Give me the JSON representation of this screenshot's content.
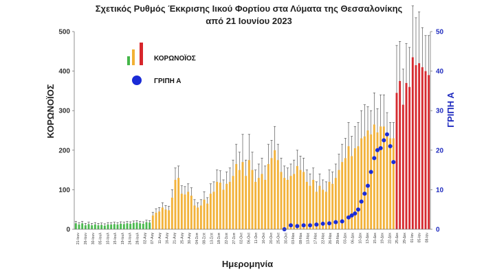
{
  "chart_data": {
    "type": "bar",
    "title_line1": "Σχετικός Ρυθμός Έκκρισης Ιικού Φορτίου στα Λύματα της Θεσσαλονίκης",
    "title_line2": "από 21 Ιουνίου 2023",
    "xlabel": "Ημερομηνία",
    "ylabel": "ΚΟΡΩΝΟΪΟΣ",
    "y2label": "ΓΡΙΠΗ Α",
    "ylim": [
      0,
      500
    ],
    "y2lim": [
      0,
      50
    ],
    "yticks": [
      "0",
      "100",
      "200",
      "300",
      "400",
      "500"
    ],
    "y2ticks": [
      "0",
      "10",
      "20",
      "30",
      "40",
      "50"
    ],
    "legend": {
      "position": "top-left",
      "covid_label": "ΚΟΡΩΝΟΪΟΣ",
      "flu_label": "ΓΡΙΠΗ Α",
      "covid_colors": [
        "#44b649",
        "#f2b134",
        "#d7262c"
      ],
      "flu_color": "#1a2bd6"
    },
    "colors": {
      "green": "#4cba4f",
      "orange": "#f2b23a",
      "red": "#d62a2f",
      "flu": "#1a2bd6",
      "errorbar": "#555555"
    },
    "date_labels": [
      "21-Ιουν",
      "26-Ιουν",
      "30-Ιουν",
      "05-Ιουλ",
      "10-Ιουλ",
      "15-Ιουλ",
      "19-Ιουλ",
      "24-Ιουλ",
      "28-Ιουλ",
      "02-Αυγ",
      "07-Αυγ",
      "11-Αυγ",
      "16-Αυγ",
      "21-Αυγ",
      "25-Αυγ",
      "30-Αυγ",
      "04-Σεπ",
      "08-Σεπ",
      "13-Σεπ",
      "18-Σεπ",
      "22-Σεπ",
      "27-Σεπ",
      "02-Οκτ",
      "06-Οκτ",
      "11-Οκτ",
      "16-Οκτ",
      "20-Οκτ",
      "25-Οκτ",
      "30-Οκτ",
      "03-Νοε",
      "08-Νοε",
      "13-Νοε",
      "17-Νοε",
      "22-Νοε",
      "26-Νοε",
      "29-Νοε",
      "03-Δεκ",
      "06-Δεκ",
      "10-Δεκ",
      "13-Δεκ",
      "15-Δεκ",
      "19-Δεκ",
      "22-Δεκ",
      "25-Δεκ",
      "29-Δεκ",
      "01-Ιαν",
      "05-Ιαν",
      "08-Ιαν"
    ],
    "covid": {
      "values": [
        15,
        12,
        15,
        10,
        13,
        10,
        12,
        10,
        11,
        9,
        12,
        12,
        13,
        12,
        14,
        13,
        15,
        14,
        16,
        17,
        15,
        14,
        18,
        17,
        35,
        42,
        45,
        55,
        50,
        48,
        80,
        125,
        130,
        90,
        88,
        95,
        85,
        60,
        55,
        60,
        75,
        65,
        90,
        95,
        120,
        118,
        100,
        115,
        120,
        135,
        165,
        150,
        170,
        135,
        175,
        150,
        120,
        130,
        140,
        125,
        165,
        180,
        200,
        175,
        145,
        130,
        125,
        135,
        140,
        160,
        150,
        145,
        120,
        110,
        125,
        95,
        110,
        100,
        95,
        120,
        115,
        130,
        150,
        170,
        180,
        210,
        185,
        205,
        210,
        230,
        235,
        250,
        240,
        265,
        245,
        260,
        260,
        235,
        230,
        230,
        345,
        375,
        315,
        370,
        360,
        435,
        415,
        420,
        410,
        400,
        390
      ],
      "errors": [
        5,
        5,
        5,
        5,
        5,
        5,
        5,
        5,
        5,
        5,
        5,
        5,
        5,
        5,
        5,
        5,
        5,
        5,
        5,
        5,
        5,
        5,
        5,
        5,
        8,
        10,
        10,
        12,
        10,
        10,
        20,
        30,
        30,
        20,
        20,
        20,
        20,
        15,
        12,
        15,
        20,
        15,
        25,
        25,
        30,
        30,
        25,
        30,
        35,
        40,
        50,
        45,
        70,
        40,
        65,
        45,
        30,
        35,
        40,
        35,
        50,
        45,
        60,
        40,
        35,
        30,
        30,
        30,
        35,
        40,
        35,
        35,
        30,
        30,
        30,
        25,
        30,
        25,
        25,
        30,
        30,
        35,
        40,
        45,
        50,
        60,
        50,
        55,
        60,
        70,
        80,
        60,
        60,
        80,
        60,
        80,
        80,
        60,
        40,
        40,
        120,
        100,
        90,
        100,
        100,
        130,
        120,
        130,
        100,
        90,
        100
      ],
      "colors_by_index": "0-23 green, 24-99 orange, 100-110 red"
    },
    "flu": {
      "x_index": [
        55,
        57,
        59,
        61,
        63,
        65,
        67,
        69,
        71,
        73,
        75,
        76,
        77,
        78,
        79,
        80,
        81,
        82,
        83,
        84,
        85,
        86,
        87,
        88,
        89
      ],
      "values": [
        0,
        1,
        0.8,
        1,
        1,
        1.2,
        1.4,
        1.5,
        1.8,
        2,
        3,
        3.5,
        4,
        5,
        7,
        9,
        11,
        14.5,
        18,
        20,
        20.5,
        22.5,
        24,
        21,
        17
      ]
    }
  }
}
